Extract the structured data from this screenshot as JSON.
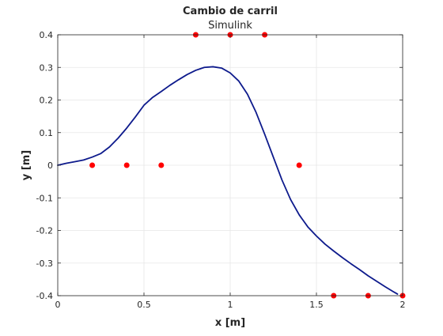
{
  "chart_data": {
    "type": "line",
    "title": "Cambio de carril",
    "subtitle": "Simulink",
    "xlabel": "x [m]",
    "ylabel": "y [m]",
    "xlim": [
      0,
      2
    ],
    "ylim": [
      -0.4,
      0.4
    ],
    "grid": true,
    "x_ticks": [
      0,
      0.5,
      1,
      1.5,
      2
    ],
    "x_tick_labels": [
      "0",
      "0.5",
      "1",
      "1.5",
      "2"
    ],
    "y_ticks": [
      -0.4,
      -0.3,
      -0.2,
      -0.1,
      0,
      0.1,
      0.2,
      0.3,
      0.4
    ],
    "y_tick_labels": [
      "-0.4",
      "-0.3",
      "-0.2",
      "-0.1",
      "0",
      "0.1",
      "0.2",
      "0.3",
      "0.4"
    ],
    "colors": {
      "line": "#0d1a8c",
      "markers": "#ff0000",
      "grid": "#e6e6e6",
      "axes": "#262626"
    },
    "series": [
      {
        "type": "line",
        "x": [
          0,
          0.05,
          0.1,
          0.15,
          0.2,
          0.25,
          0.3,
          0.35,
          0.4,
          0.45,
          0.5,
          0.55,
          0.6,
          0.65,
          0.7,
          0.75,
          0.8,
          0.85,
          0.9,
          0.95,
          1.0,
          1.05,
          1.1,
          1.15,
          1.2,
          1.25,
          1.3,
          1.35,
          1.4,
          1.45,
          1.5,
          1.55,
          1.6,
          1.65,
          1.7,
          1.75,
          1.8,
          1.85,
          1.9,
          1.95,
          1.97
        ],
        "y": [
          0,
          0.006,
          0.011,
          0.016,
          0.025,
          0.036,
          0.056,
          0.083,
          0.114,
          0.148,
          0.184,
          0.208,
          0.226,
          0.245,
          0.262,
          0.278,
          0.291,
          0.3,
          0.302,
          0.298,
          0.283,
          0.258,
          0.218,
          0.162,
          0.095,
          0.025,
          -0.045,
          -0.105,
          -0.152,
          -0.189,
          -0.217,
          -0.242,
          -0.263,
          -0.283,
          -0.302,
          -0.32,
          -0.339,
          -0.356,
          -0.373,
          -0.389,
          -0.395
        ]
      },
      {
        "type": "scatter",
        "x": [
          0.2,
          0.4,
          0.6,
          0.8,
          1.0,
          1.2,
          1.4,
          1.6,
          1.8,
          2.0
        ],
        "y": [
          0,
          0,
          0,
          0.4,
          0.4,
          0.4,
          0,
          -0.4,
          -0.4,
          -0.4
        ]
      }
    ]
  }
}
